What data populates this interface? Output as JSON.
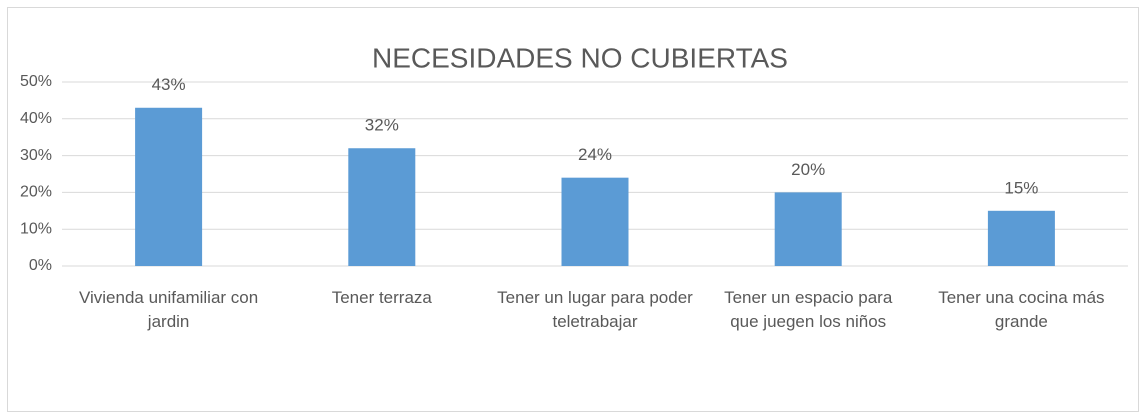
{
  "chart_data": {
    "type": "bar",
    "title": "NECESIDADES NO CUBIERTAS",
    "categories": [
      "Vivienda unifamiliar con jardin",
      "Tener terraza",
      "Tener un lugar para poder teletrabajar",
      "Tener un espacio para que juegen los niños",
      "Tener una cocina más grande"
    ],
    "values": [
      43,
      32,
      24,
      20,
      15
    ],
    "value_labels": [
      "43%",
      "32%",
      "24%",
      "20%",
      "15%"
    ],
    "color": "#5b9bd5",
    "ylim": [
      0,
      50
    ],
    "yticks": [
      {
        "value": 0,
        "label": "0%"
      },
      {
        "value": 10,
        "label": "10%"
      },
      {
        "value": 20,
        "label": "20%"
      },
      {
        "value": 30,
        "label": "30%"
      },
      {
        "value": 40,
        "label": "40%"
      },
      {
        "value": 50,
        "label": "50%"
      }
    ],
    "grid": true
  }
}
